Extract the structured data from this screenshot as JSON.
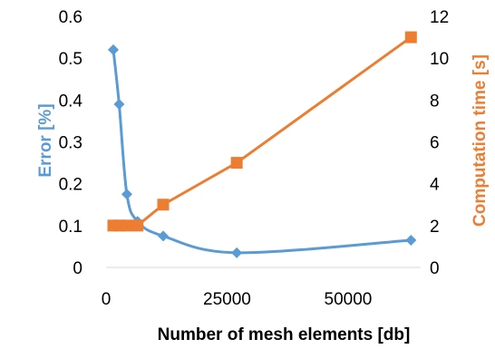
{
  "chart_data": {
    "type": "line",
    "xlabel": "Number of mesh elements [db]",
    "ylabel_left": "Error [%]",
    "ylabel_right": "Computation time [s]",
    "xlim": [
      0,
      65000
    ],
    "ylim_left": [
      0,
      0.6
    ],
    "ylim_right": [
      0,
      12
    ],
    "x_ticks": [
      "0",
      "25000",
      "50000"
    ],
    "y_left_ticks": [
      "0",
      "0.1",
      "0.2",
      "0.3",
      "0.4",
      "0.5",
      "0.6"
    ],
    "y_right_ticks": [
      "0",
      "2",
      "4",
      "6",
      "8",
      "10",
      "12"
    ],
    "grid": false,
    "series": [
      {
        "axis": "left",
        "color": "#5B9BD5",
        "marker": "diamond",
        "smooth": true,
        "points": [
          [
            1500,
            0.52
          ],
          [
            2700,
            0.39
          ],
          [
            4300,
            0.175
          ],
          [
            6500,
            0.11
          ],
          [
            11800,
            0.075
          ],
          [
            27000,
            0.035
          ],
          [
            63000,
            0.065
          ]
        ]
      },
      {
        "axis": "right",
        "color": "#ED7D31",
        "marker": "square",
        "smooth": false,
        "points": [
          [
            1500,
            2
          ],
          [
            2700,
            2
          ],
          [
            4300,
            2
          ],
          [
            6500,
            2
          ],
          [
            11800,
            3
          ],
          [
            27000,
            5
          ],
          [
            63000,
            11
          ]
        ]
      }
    ]
  }
}
